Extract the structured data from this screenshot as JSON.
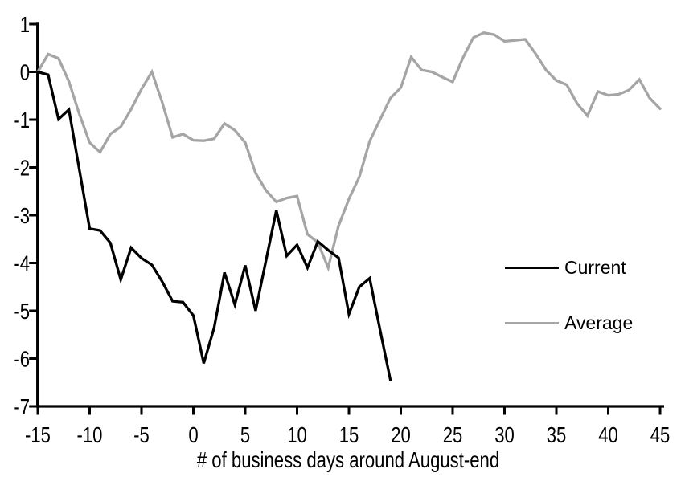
{
  "chart_data": {
    "type": "line",
    "xlabel": "# of business days around August-end",
    "xlim": [
      -15,
      45
    ],
    "ylim": [
      -7,
      1
    ],
    "x_ticks": [
      -15,
      -10,
      -5,
      0,
      5,
      10,
      15,
      20,
      25,
      30,
      35,
      40,
      45
    ],
    "y_ticks": [
      1,
      0,
      -1,
      -2,
      -3,
      -4,
      -5,
      -6,
      -7
    ],
    "grid": false,
    "legend_position": "right-middle",
    "axis_color": "#000000",
    "series": [
      {
        "name": "Current",
        "color": "#000000",
        "x_start": -15,
        "x_step": 1,
        "values": [
          0,
          -0.06,
          -0.99,
          -0.79,
          -2.04,
          -3.28,
          -3.32,
          -3.58,
          -4.35,
          -3.68,
          -3.9,
          -4.04,
          -4.39,
          -4.8,
          -4.82,
          -5.1,
          -6.1,
          -5.36,
          -4.2,
          -4.87,
          -4.05,
          -5.0,
          -3.95,
          -2.9,
          -3.85,
          -3.62,
          -4.1,
          -3.55,
          -3.73,
          -3.89,
          -5.07,
          -4.5,
          -4.32,
          -5.4,
          -6.45
        ]
      },
      {
        "name": "Average",
        "color": "#a5a5a5",
        "x_start": -15,
        "x_step": 1,
        "values": [
          0,
          0.37,
          0.28,
          -0.2,
          -0.88,
          -1.48,
          -1.68,
          -1.3,
          -1.15,
          -0.78,
          -0.36,
          0.0,
          -0.64,
          -1.37,
          -1.3,
          -1.43,
          -1.44,
          -1.4,
          -1.08,
          -1.22,
          -1.48,
          -2.12,
          -2.48,
          -2.72,
          -2.64,
          -2.6,
          -3.4,
          -3.57,
          -4.1,
          -3.22,
          -2.66,
          -2.2,
          -1.45,
          -1.0,
          -0.55,
          -0.33,
          0.31,
          0.04,
          0.0,
          -0.11,
          -0.21,
          0.3,
          0.72,
          0.82,
          0.78,
          0.64,
          0.66,
          0.68,
          0.38,
          0.04,
          -0.18,
          -0.27,
          -0.66,
          -0.92,
          -0.41,
          -0.49,
          -0.47,
          -0.38,
          -0.16,
          -0.55,
          -0.77
        ]
      }
    ]
  }
}
